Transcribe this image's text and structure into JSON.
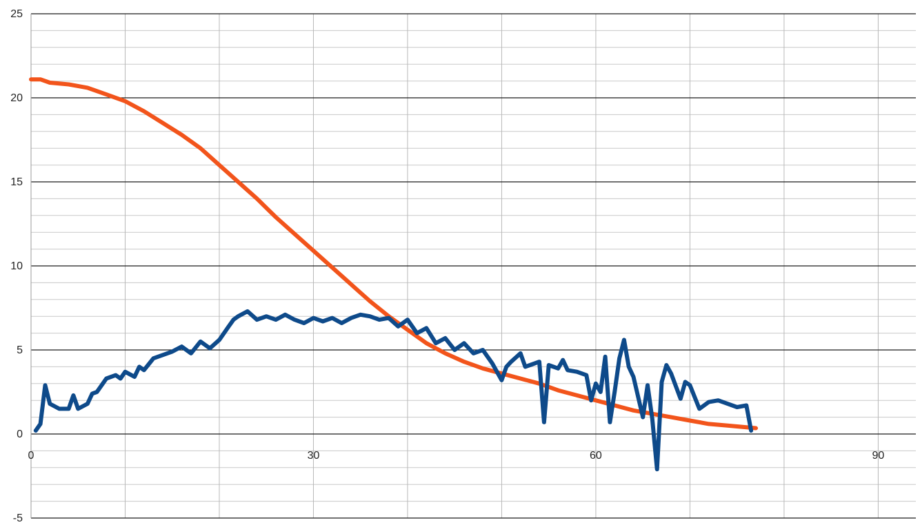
{
  "chart_data": {
    "type": "line",
    "title": "",
    "xlabel": "",
    "ylabel": "",
    "xlim": [
      0,
      94
    ],
    "ylim": [
      -5,
      25
    ],
    "x_ticks": [
      0,
      30,
      60,
      90
    ],
    "x_tick_labels": [
      "0",
      "30",
      "60",
      "90"
    ],
    "y_ticks": [
      -5,
      0,
      5,
      10,
      15,
      20,
      25
    ],
    "y_tick_labels": [
      "-5",
      "0",
      "5",
      "10",
      "15",
      "20",
      "25"
    ],
    "x_minor_step": 10,
    "y_minor_step": 1,
    "grid": true,
    "legend": "none",
    "series": [
      {
        "color": "#f2541b",
        "x": [
          0,
          1,
          2,
          4,
          6,
          8,
          10,
          12,
          14,
          16,
          18,
          20,
          22,
          24,
          26,
          28,
          30,
          32,
          34,
          36,
          38,
          40,
          42,
          44,
          46,
          48,
          50,
          52,
          54,
          56,
          58,
          60,
          62,
          64,
          66,
          68,
          70,
          72,
          74,
          76,
          77
        ],
        "y": [
          21.1,
          21.1,
          20.9,
          20.8,
          20.6,
          20.2,
          19.8,
          19.2,
          18.5,
          17.8,
          17.0,
          16.0,
          15.0,
          14.0,
          12.9,
          11.9,
          10.9,
          9.9,
          8.9,
          7.9,
          7.0,
          6.2,
          5.4,
          4.8,
          4.3,
          3.9,
          3.6,
          3.3,
          3.0,
          2.6,
          2.3,
          2.0,
          1.7,
          1.4,
          1.2,
          1.0,
          0.8,
          0.6,
          0.5,
          0.4,
          0.35
        ]
      },
      {
        "color": "#0e4a8a",
        "x": [
          0.5,
          1,
          1.5,
          2,
          3,
          4,
          4.5,
          5,
          6,
          6.5,
          7,
          8,
          9,
          9.5,
          10,
          11,
          11.5,
          12,
          13,
          14,
          15,
          16,
          17,
          18,
          19,
          20,
          21,
          21.5,
          22,
          23,
          24,
          25,
          26,
          27,
          28,
          29,
          30,
          31,
          32,
          33,
          34,
          35,
          36,
          37,
          38,
          39,
          40,
          41,
          42,
          43,
          44,
          45,
          46,
          47,
          48,
          49,
          50,
          50.5,
          51,
          52,
          52.5,
          53,
          54,
          54.5,
          55,
          56,
          56.5,
          57,
          58,
          59,
          59.5,
          60,
          60.5,
          61,
          61.5,
          62,
          62.5,
          63,
          63.5,
          64,
          65,
          65.5,
          66,
          66.5,
          67,
          67.5,
          68,
          69,
          69.5,
          70,
          71,
          72,
          73,
          74,
          75,
          76,
          76.5
        ],
        "y": [
          0.2,
          0.6,
          2.9,
          1.8,
          1.5,
          1.5,
          2.3,
          1.5,
          1.8,
          2.4,
          2.5,
          3.3,
          3.5,
          3.3,
          3.7,
          3.4,
          4.0,
          3.8,
          4.5,
          4.7,
          4.9,
          5.2,
          4.8,
          5.5,
          5.1,
          5.6,
          6.4,
          6.8,
          7.0,
          7.3,
          6.8,
          7.0,
          6.8,
          7.1,
          6.8,
          6.6,
          6.9,
          6.7,
          6.9,
          6.6,
          6.9,
          7.1,
          7.0,
          6.8,
          6.9,
          6.4,
          6.8,
          6.0,
          6.3,
          5.4,
          5.7,
          5.0,
          5.4,
          4.8,
          5.0,
          4.2,
          3.2,
          4.0,
          4.3,
          4.8,
          4.0,
          4.1,
          4.3,
          0.7,
          4.1,
          3.9,
          4.4,
          3.8,
          3.7,
          3.5,
          2.0,
          3.0,
          2.5,
          4.6,
          0.7,
          2.5,
          4.5,
          5.6,
          4.0,
          3.4,
          1.0,
          2.9,
          0.9,
          -2.1,
          3.1,
          4.1,
          3.6,
          2.1,
          3.1,
          2.9,
          1.5,
          1.9,
          2.0,
          1.8,
          1.6,
          1.7,
          0.2
        ]
      }
    ]
  }
}
